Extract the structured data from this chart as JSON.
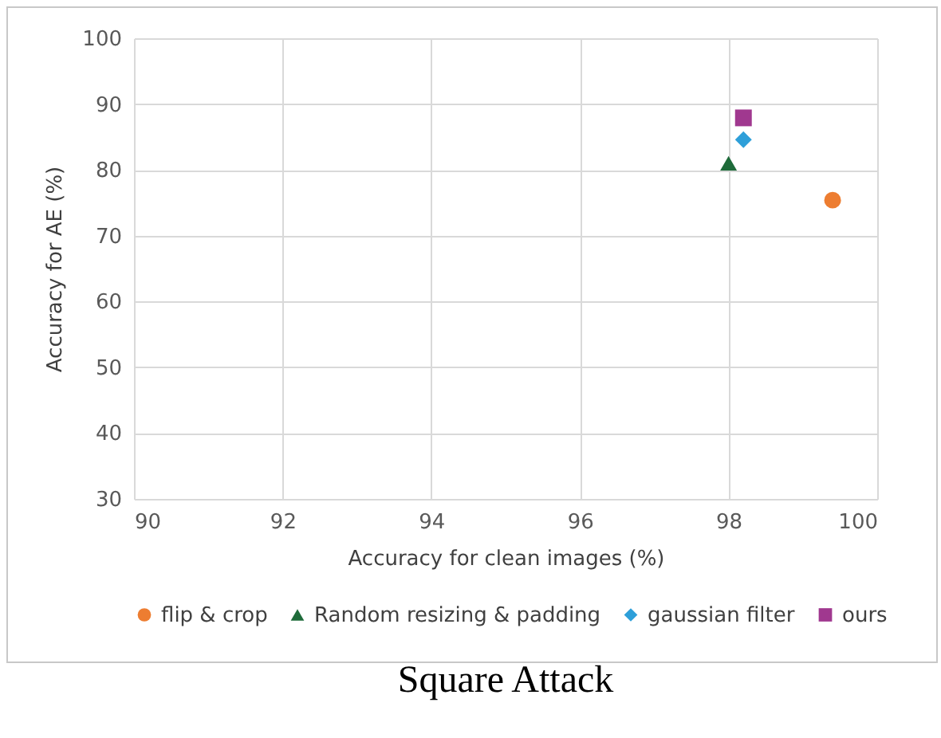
{
  "chart_data": {
    "type": "scatter",
    "title": "Square Attack",
    "xlabel": "Accuracy for clean images (%)",
    "ylabel": "Accuracy for AE (%)",
    "xlim": [
      90,
      100
    ],
    "xticks": [
      90,
      92,
      94,
      96,
      98,
      100
    ],
    "ylim": [
      30,
      100
    ],
    "yticks": [
      30,
      40,
      50,
      60,
      70,
      80,
      90,
      100
    ],
    "grid": true,
    "legend": "bottom",
    "series": [
      {
        "name": "flip & crop",
        "color": "#ed7d31",
        "marker": "circle",
        "x": [
          99.4
        ],
        "values": [
          75.4
        ]
      },
      {
        "name": "Random resizing & padding",
        "color": "#1e6b3a",
        "marker": "triangle",
        "x": [
          98.0
        ],
        "values": [
          81
        ]
      },
      {
        "name": "gaussian filter",
        "color": "#2e9fd9",
        "marker": "diamond",
        "x": [
          98.2
        ],
        "values": [
          84.6
        ]
      },
      {
        "name": "ours",
        "color": "#a0388f",
        "marker": "square",
        "x": [
          98.2
        ],
        "values": [
          87.9
        ]
      }
    ]
  }
}
